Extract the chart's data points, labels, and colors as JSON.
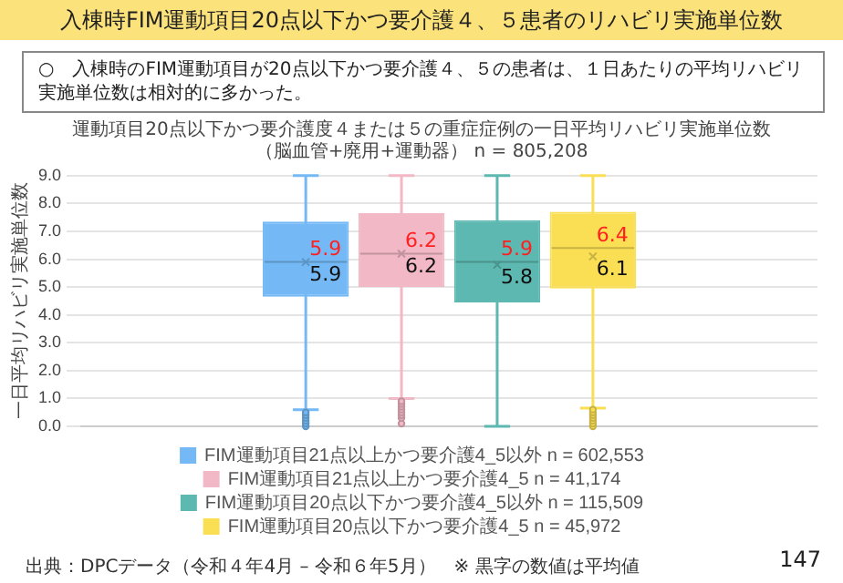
{
  "chart_data": {
    "type": "box",
    "title": "入棟時FIM運動項目20点以下かつ要介護４、５患者のリハビリ実施単位数",
    "subtitle": "運動項目20点以下かつ要介護度４または５の重症症例の一日平均リハビリ実施単位数",
    "annotations": [
      "（脳血管+廃用+運動器） n = 805,208",
      "○　入棟時のFIM運動項目が20点以下かつ要介護４、５の患者は、１日あたりの平均リハビリ実施単位数は相対的に多かった。",
      "出典：DPCデータ（令和４年4月 – 令和６年5月）　※ 黒字の数値は平均値",
      "147",
      {
        "text": "5.9",
        "y": 5.9
      },
      {
        "text": "5.9",
        "y": 5.9
      },
      {
        "text": "6.2",
        "y": 6.2
      },
      {
        "text": "6.2",
        "y": 6.2
      },
      {
        "text": "5.9",
        "y": 5.9
      },
      {
        "text": "5.8",
        "y": 5.8
      },
      {
        "text": "6.4",
        "y": 6.4
      },
      {
        "text": "6.1",
        "y": 6.1
      }
    ],
    "ylabel": "一日平均リハビリ実施単位数",
    "categories": [
      null
    ],
    "series": [
      {
        "name": "FIM運動項目21点以上かつ要介護4_5以外 n = 602,553",
        "color": "#74b9f5",
        "boxes": [
          {
            "low": 0.6,
            "q1": 4.65,
            "median": 5.9,
            "q3": 7.35,
            "high": 9.0,
            "mean": 5.9,
            "outliers": [
              0.0,
              0.1,
              0.2,
              0.3,
              0.4,
              0.5
            ]
          }
        ]
      },
      {
        "name": "FIM運動項目21点以上かつ要介護4_5 n = 41,174",
        "color": "#f2b8c6",
        "boxes": [
          {
            "low": 1.0,
            "q1": 5.0,
            "median": 6.2,
            "q3": 7.65,
            "high": 9.0,
            "mean": 6.2,
            "outliers": [
              0.1,
              0.3,
              0.4,
              0.5,
              0.6,
              0.7,
              0.8,
              0.9
            ]
          }
        ]
      },
      {
        "name": "FIM運動項目20点以下かつ要介護4_5以外 n = 115,509",
        "color": "#5cb8b0",
        "boxes": [
          {
            "low": 0.0,
            "q1": 4.45,
            "median": 5.9,
            "q3": 7.4,
            "high": 9.0,
            "mean": 5.8
          }
        ]
      },
      {
        "name": "FIM運動項目20点以下かつ要介護4_5 n = 45,972",
        "color": "#fadf55",
        "boxes": [
          {
            "low": 0.65,
            "q1": 4.95,
            "median": 6.4,
            "q3": 7.7,
            "high": 9.0,
            "mean": 6.1,
            "outliers": [
              0.0,
              0.1,
              0.2,
              0.3,
              0.4,
              0.5,
              0.6
            ]
          }
        ]
      }
    ],
    "ylim": [
      0,
      9
    ],
    "yticks": [
      {
        "value": 0,
        "label": "0.0"
      },
      {
        "value": 1,
        "label": "1.0"
      },
      {
        "value": 2,
        "label": "2.0"
      },
      {
        "value": 3,
        "label": "3.0"
      },
      {
        "value": 4,
        "label": "4.0"
      },
      {
        "value": 5,
        "label": "5.0"
      },
      {
        "value": 6,
        "label": "6.0"
      },
      {
        "value": 7,
        "label": "7.0"
      },
      {
        "value": 8,
        "label": "8.0"
      },
      {
        "value": 9,
        "label": "9.0"
      }
    ],
    "grid": "y",
    "legend": "bottom"
  }
}
